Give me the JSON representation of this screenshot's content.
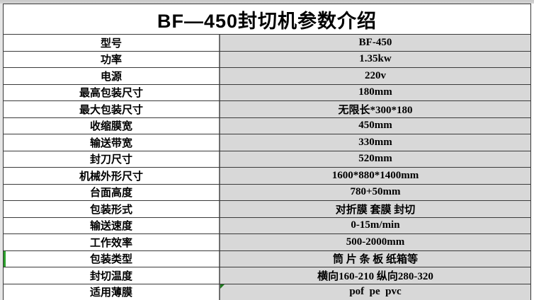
{
  "page": {
    "title": "BF—450封切机参数介绍"
  },
  "table": {
    "rows": [
      {
        "label": "型号",
        "value": "BF-450"
      },
      {
        "label": "功率",
        "value": "1.35kw"
      },
      {
        "label": "电源",
        "value": "220v"
      },
      {
        "label": "最高包装尺寸",
        "value": "180mm"
      },
      {
        "label": "最大包装尺寸",
        "value": "无限长*300*180"
      },
      {
        "label": "收缩膜宽",
        "value": "450mm"
      },
      {
        "label": "输送带宽",
        "value": "330mm"
      },
      {
        "label": "封刀尺寸",
        "value": "520mm"
      },
      {
        "label": "机械外形尺寸",
        "value": "1600*880*1400mm"
      },
      {
        "label": "台面高度",
        "value": "780+50mm"
      },
      {
        "label": "包装形式",
        "value": "对折膜 套膜 封切"
      },
      {
        "label": "输送速度",
        "value": "0-15m/min"
      },
      {
        "label": "工作效率",
        "value": "500-2000mm"
      },
      {
        "label": "包装类型",
        "value": "筒 片 条 板 纸箱等",
        "selected": true
      },
      {
        "label": "封切温度",
        "value": "横向160-210 纵向280-320"
      },
      {
        "label": "适用薄膜",
        "value": "pof  pe  pvc",
        "flag": true
      }
    ]
  },
  "colors": {
    "value_cell_bg": "#d8d8d8",
    "border": "#3a3a3a",
    "column_divider": "#6e6e6e",
    "selection_green": "#2ca02c",
    "flag_green": "#1d7a1d"
  }
}
